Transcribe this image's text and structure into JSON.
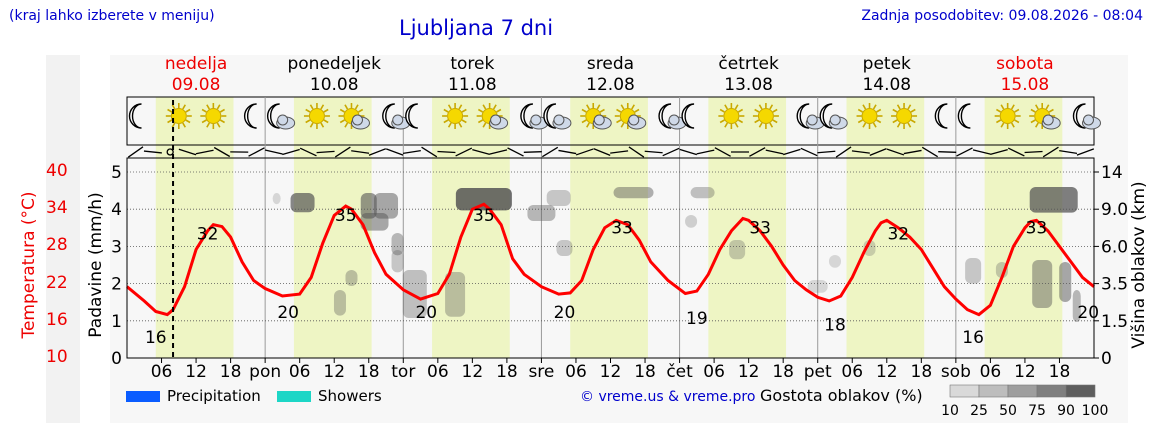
{
  "header": {
    "note_left": "(kraj lahko izberete v meniju)",
    "title": "Ljubljana 7 dni",
    "note_right": "Zadnja posodobitev: 09.08.2026 - 08:04"
  },
  "days": [
    {
      "name": "nedelja",
      "date": "09.08",
      "color": "#ee0000",
      "abbr": "",
      "icons": [
        "moon-icon",
        "sun-icon",
        "sun-icon",
        "moon-icon"
      ]
    },
    {
      "name": "ponedeljek",
      "date": "10.08",
      "color": "#000000",
      "abbr": "pon",
      "icons": [
        "moon-cloud-icon",
        "sun-icon",
        "sun-cloud-icon",
        "moon-cloud-icon"
      ]
    },
    {
      "name": "torek",
      "date": "11.08",
      "color": "#000000",
      "abbr": "tor",
      "icons": [
        "moon-icon",
        "sun-icon",
        "sun-cloud-icon",
        "moon-cloud-icon"
      ]
    },
    {
      "name": "sreda",
      "date": "12.08",
      "color": "#000000",
      "abbr": "sre",
      "icons": [
        "moon-cloud-icon",
        "sun-cloud-icon",
        "sun-cloud-icon",
        "moon-cloud-icon"
      ]
    },
    {
      "name": "četrtek",
      "date": "13.08",
      "color": "#000000",
      "abbr": "čet",
      "icons": [
        "moon-icon",
        "sun-icon",
        "sun-icon",
        "moon-cloud-icon"
      ]
    },
    {
      "name": "petek",
      "date": "14.08",
      "color": "#000000",
      "abbr": "pet",
      "icons": [
        "moon-cloud-icon",
        "sun-icon",
        "sun-icon",
        "moon-icon"
      ]
    },
    {
      "name": "sobota",
      "date": "15.08",
      "color": "#ee0000",
      "abbr": "sob",
      "icons": [
        "moon-icon",
        "sun-icon",
        "sun-cloud-icon",
        "moon-cloud-icon"
      ]
    }
  ],
  "axes": {
    "temperature_label": "Temperatura (°C)",
    "precip_label": "Padavine (mm/h)",
    "cloud_label": "Višina oblakov (km)"
  },
  "legend": {
    "precip": "Precipitation",
    "showers": "Showers",
    "copyright": "© vreme.us & vreme.pro",
    "density_label": "Gostota oblakov (%)",
    "density_ticks": [
      "10",
      "25",
      "50",
      "75",
      "90",
      "100"
    ]
  },
  "colors": {
    "temp_line": "#ff0000",
    "day_band": "#eef5c4",
    "precip": "#0a5cff",
    "showers": "#1dd6c6",
    "now_line": "#000000"
  },
  "chart_data": {
    "type": "line",
    "x_unit": "hours since 09.08 00:00",
    "x_tick_labels": [
      "06",
      "12",
      "18",
      "pon",
      "06",
      "12",
      "18",
      "tor",
      "06",
      "12",
      "18",
      "sre",
      "06",
      "12",
      "18",
      "čet",
      "06",
      "12",
      "18",
      "pet",
      "06",
      "12",
      "18",
      "sob",
      "06",
      "12",
      "18"
    ],
    "now_hour": 8,
    "series": [
      {
        "name": "",
        "points": [
          [
            0,
            21.5
          ],
          [
            3,
            19.2
          ],
          [
            5,
            17.5
          ],
          [
            7,
            17.0
          ],
          [
            8,
            17.8
          ],
          [
            10,
            21.5
          ],
          [
            12,
            27.5
          ],
          [
            14,
            30.5
          ],
          [
            15,
            31.5
          ],
          [
            16.5,
            31.2
          ],
          [
            18,
            29.5
          ],
          [
            20,
            25.5
          ],
          [
            22,
            22.5
          ],
          [
            24,
            21.2
          ],
          [
            27,
            20.0
          ],
          [
            30,
            20.3
          ],
          [
            32,
            23.0
          ],
          [
            34,
            28.5
          ],
          [
            36,
            33.0
          ],
          [
            38,
            34.5
          ],
          [
            39,
            34.0
          ],
          [
            41,
            31.5
          ],
          [
            43,
            27.0
          ],
          [
            45,
            23.5
          ],
          [
            48,
            21.0
          ],
          [
            51,
            19.5
          ],
          [
            54,
            20.4
          ],
          [
            56,
            23.5
          ],
          [
            58,
            29.5
          ],
          [
            60,
            34.0
          ],
          [
            62,
            34.8
          ],
          [
            63,
            34.0
          ],
          [
            65,
            31.5
          ],
          [
            67,
            26.0
          ],
          [
            69,
            23.5
          ],
          [
            72,
            21.5
          ],
          [
            75,
            20.3
          ],
          [
            77,
            20.5
          ],
          [
            79,
            22.5
          ],
          [
            81,
            27.5
          ],
          [
            83,
            31.0
          ],
          [
            85,
            32.2
          ],
          [
            87,
            31.5
          ],
          [
            89,
            29.0
          ],
          [
            91,
            25.5
          ],
          [
            94,
            22.5
          ],
          [
            97,
            20.4
          ],
          [
            99,
            20.8
          ],
          [
            101,
            23.5
          ],
          [
            103,
            27.5
          ],
          [
            105,
            30.5
          ],
          [
            107,
            32.5
          ],
          [
            108,
            32.2
          ],
          [
            110,
            30.5
          ],
          [
            112,
            28.0
          ],
          [
            114,
            25.0
          ],
          [
            116,
            22.5
          ],
          [
            118,
            21.0
          ],
          [
            120,
            19.8
          ],
          [
            122,
            19.2
          ],
          [
            124,
            20.0
          ],
          [
            126,
            23.0
          ],
          [
            128,
            27.0
          ],
          [
            130,
            30.5
          ],
          [
            131,
            31.8
          ],
          [
            132,
            32.2
          ],
          [
            134,
            31.0
          ],
          [
            136,
            29.5
          ],
          [
            138,
            27.5
          ],
          [
            140,
            24.5
          ],
          [
            142,
            21.5
          ],
          [
            144,
            19.5
          ],
          [
            146,
            17.8
          ],
          [
            148,
            17.0
          ],
          [
            150,
            18.5
          ],
          [
            152,
            23.0
          ],
          [
            154,
            28.0
          ],
          [
            156,
            31.0
          ],
          [
            157,
            32.0
          ],
          [
            158,
            32.2
          ],
          [
            160,
            30.5
          ],
          [
            162,
            28.0
          ],
          [
            164,
            25.5
          ],
          [
            166,
            23.0
          ],
          [
            168,
            21.5
          ]
        ]
      }
    ],
    "labels": [
      {
        "x": 5,
        "y": 16,
        "text": "16"
      },
      {
        "x": 14,
        "y": 32,
        "text": "32"
      },
      {
        "x": 28,
        "y": 20,
        "text": "20"
      },
      {
        "x": 38,
        "y": 35,
        "text": "35"
      },
      {
        "x": 52,
        "y": 20,
        "text": "20"
      },
      {
        "x": 62,
        "y": 35,
        "text": "35"
      },
      {
        "x": 76,
        "y": 20,
        "text": "20"
      },
      {
        "x": 86,
        "y": 33,
        "text": "33"
      },
      {
        "x": 99,
        "y": 19,
        "text": "19"
      },
      {
        "x": 110,
        "y": 33,
        "text": "33"
      },
      {
        "x": 123,
        "y": 18,
        "text": "18"
      },
      {
        "x": 134,
        "y": 32,
        "text": "32"
      },
      {
        "x": 147,
        "y": 16,
        "text": "16"
      },
      {
        "x": 158,
        "y": 33,
        "text": "33"
      },
      {
        "x": 167,
        "y": 20,
        "text": "20"
      }
    ],
    "y_temperature": {
      "ticks": [
        "10",
        "16",
        "22",
        "28",
        "34",
        "40"
      ],
      "range": [
        10,
        40
      ]
    },
    "y_precip": {
      "ticks": [
        "0",
        "1",
        "2",
        "3",
        "4",
        "5"
      ],
      "range": [
        0,
        5
      ]
    },
    "y_cloud": {
      "ticks": [
        "0",
        "1.5",
        "3.5",
        "6.0",
        "9.0",
        "14"
      ]
    },
    "xlim": [
      0,
      168
    ],
    "grid": true
  }
}
